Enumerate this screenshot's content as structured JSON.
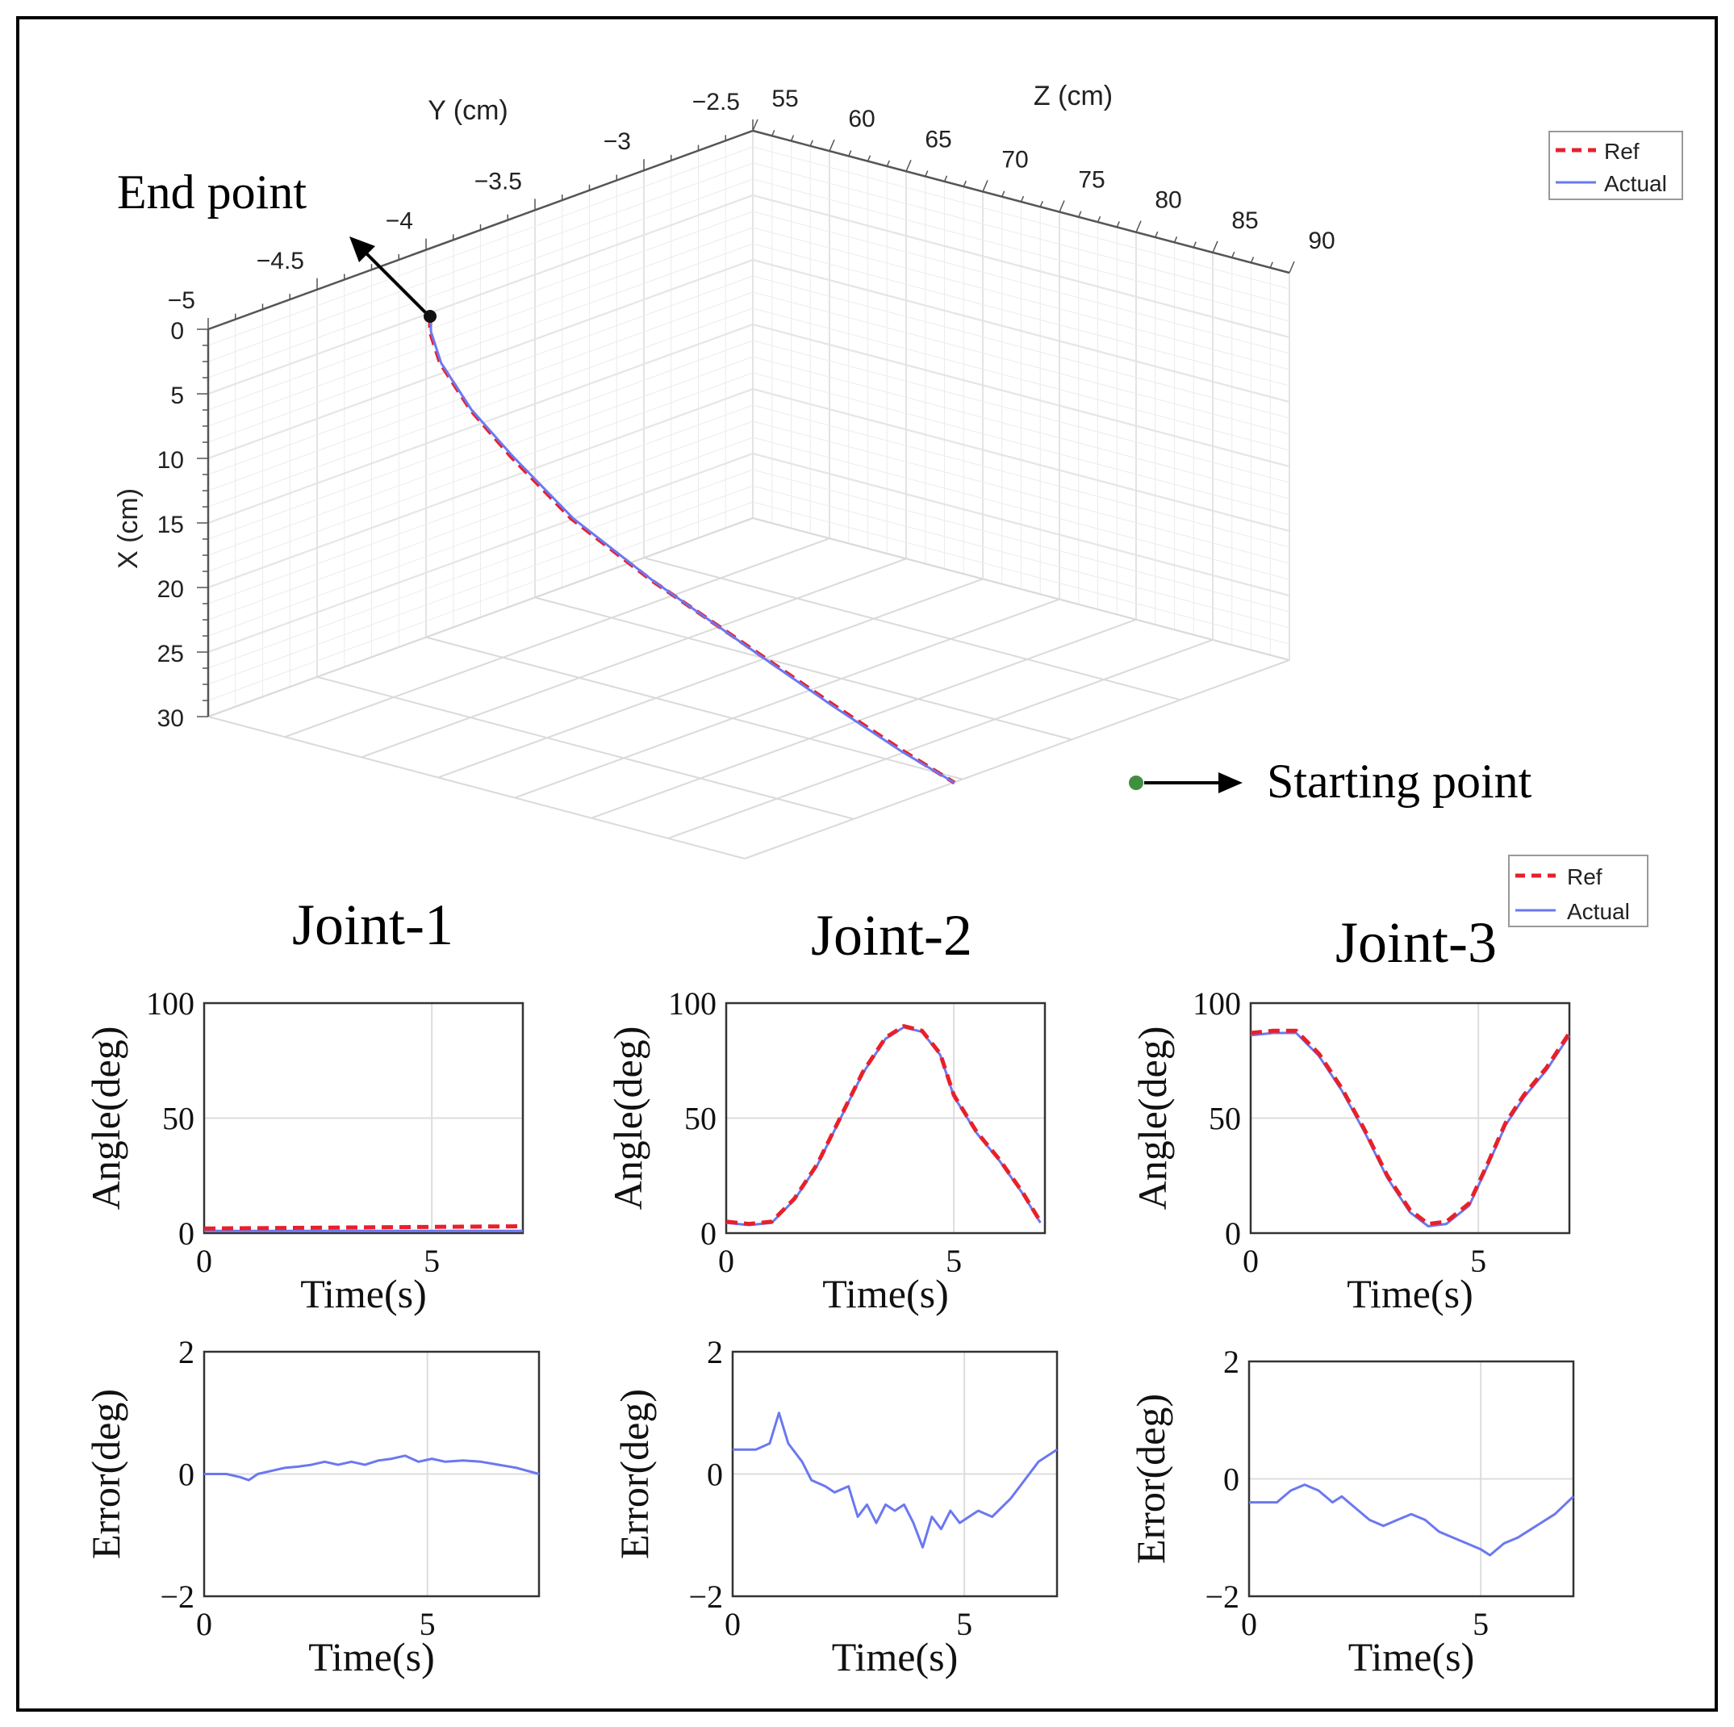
{
  "colors": {
    "ref": "#e8202a",
    "actual": "#6b78f0",
    "grid": "#d8d8d8",
    "axis": "#3a3a3a",
    "frame": "#000000"
  },
  "chart_data": [
    {
      "id": "traj3d",
      "type": "line",
      "title": "",
      "xlabel": "X (cm)",
      "ylabel": "Y (cm)",
      "zlabel": "Z (cm)",
      "x_ticks": [
        "0",
        "5",
        "10",
        "15",
        "20",
        "25",
        "30"
      ],
      "y_ticks": [
        "−5",
        "−4.5",
        "−4",
        "−3.5",
        "−3",
        "−2.5"
      ],
      "z_ticks": [
        "55",
        "60",
        "65",
        "70",
        "75",
        "80",
        "85",
        "90"
      ],
      "legend": [
        "Ref",
        "Actual"
      ],
      "annotations": {
        "end": "End point",
        "start": "Starting point"
      },
      "series": [
        {
          "name": "Ref",
          "style": "dashed",
          "x": [
            0,
            1,
            3,
            6,
            9,
            13,
            17,
            21,
            25,
            28,
            30
          ],
          "y": [
            -4,
            -4,
            -4,
            -4,
            -4,
            -4,
            -4,
            -4,
            -4,
            -4,
            -4
          ],
          "z": [
            55.0,
            55.0,
            55.5,
            57,
            59,
            62,
            66,
            70.5,
            75,
            78.5,
            81
          ]
        },
        {
          "name": "Actual",
          "style": "solid",
          "x": [
            0,
            1,
            3,
            6,
            9,
            13,
            17,
            21,
            25,
            28,
            30
          ],
          "y": [
            -4,
            -4,
            -4,
            -4,
            -4,
            -4,
            -4,
            -4,
            -4,
            -4,
            -4
          ],
          "z": [
            55.0,
            55.05,
            55.55,
            57.05,
            59.1,
            62.1,
            66.05,
            70.45,
            74.9,
            78.4,
            81
          ]
        }
      ]
    },
    {
      "id": "j1_angle",
      "type": "line",
      "title": "Joint-1",
      "xlabel": "Time(s)",
      "ylabel": "Angle(deg)",
      "xlim": [
        0,
        7
      ],
      "ylim": [
        0,
        100
      ],
      "xticks": [
        "0",
        "5"
      ],
      "yticks": [
        "0",
        "50",
        "100"
      ],
      "series": [
        {
          "name": "Ref",
          "x": [
            0,
            7
          ],
          "y": [
            2,
            3
          ]
        },
        {
          "name": "Actual",
          "x": [
            0,
            7
          ],
          "y": [
            1,
            1
          ]
        }
      ]
    },
    {
      "id": "j2_angle",
      "type": "line",
      "title": "Joint-2",
      "xlabel": "Time(s)",
      "ylabel": "Angle(deg)",
      "xlim": [
        0,
        7
      ],
      "ylim": [
        0,
        100
      ],
      "xticks": [
        "0",
        "5"
      ],
      "yticks": [
        "0",
        "50",
        "100"
      ],
      "series": [
        {
          "name": "Ref",
          "x": [
            0,
            0.5,
            1,
            1.5,
            2,
            2.5,
            3,
            3.5,
            3.9,
            4.3,
            4.7,
            5,
            5.5,
            6,
            6.5,
            6.9
          ],
          "y": [
            5,
            4,
            5,
            15,
            30,
            50,
            70,
            85,
            90,
            88,
            78,
            60,
            44,
            32,
            18,
            5
          ]
        },
        {
          "name": "Actual",
          "x": [
            0,
            0.5,
            1,
            1.5,
            2,
            2.5,
            3,
            3.5,
            3.9,
            4.3,
            4.7,
            5,
            5.5,
            6,
            6.5,
            6.9
          ],
          "y": [
            4.5,
            3.5,
            4.5,
            14.5,
            29.5,
            49.5,
            69.5,
            84.5,
            89.5,
            87.5,
            77.5,
            59.5,
            43.5,
            31.5,
            17.5,
            4.5
          ]
        }
      ]
    },
    {
      "id": "j3_angle",
      "type": "line",
      "title": "Joint-3",
      "xlabel": "Time(s)",
      "ylabel": "Angle(deg)",
      "xlim": [
        0,
        7
      ],
      "ylim": [
        0,
        100
      ],
      "xticks": [
        "0",
        "5"
      ],
      "yticks": [
        "0",
        "50",
        "100"
      ],
      "series": [
        {
          "name": "Ref",
          "x": [
            0,
            0.5,
            1,
            1.5,
            2,
            2.5,
            3,
            3.5,
            3.9,
            4.3,
            4.8,
            5.2,
            5.6,
            6,
            6.5,
            7
          ],
          "y": [
            87,
            88,
            88,
            78,
            63,
            45,
            25,
            10,
            4,
            5,
            13,
            30,
            48,
            60,
            72,
            87
          ]
        },
        {
          "name": "Actual",
          "x": [
            0,
            0.5,
            1,
            1.5,
            2,
            2.5,
            3,
            3.5,
            3.9,
            4.3,
            4.8,
            5.2,
            5.6,
            6,
            6.5,
            7
          ],
          "y": [
            86,
            87,
            87,
            77,
            62,
            44,
            24,
            9,
            3,
            4,
            12,
            29,
            47,
            59,
            71,
            86
          ]
        }
      ]
    },
    {
      "id": "j1_error",
      "type": "line",
      "title": "",
      "xlabel": "Time(s)",
      "ylabel": "Error(deg)",
      "xlim": [
        0,
        7.5
      ],
      "ylim": [
        -2,
        2
      ],
      "xticks": [
        "0",
        "5"
      ],
      "yticks": [
        "−2",
        "0",
        "2"
      ],
      "series": [
        {
          "name": "Actual",
          "x": [
            0,
            0.5,
            0.8,
            1.0,
            1.2,
            1.5,
            1.8,
            2.1,
            2.4,
            2.7,
            3.0,
            3.3,
            3.6,
            3.9,
            4.2,
            4.5,
            4.8,
            5.1,
            5.4,
            5.8,
            6.2,
            6.6,
            7.0,
            7.5
          ],
          "y": [
            0,
            0,
            -0.05,
            -0.1,
            0,
            0.05,
            0.1,
            0.12,
            0.15,
            0.2,
            0.15,
            0.2,
            0.15,
            0.22,
            0.25,
            0.3,
            0.2,
            0.25,
            0.2,
            0.22,
            0.2,
            0.15,
            0.1,
            0
          ]
        }
      ]
    },
    {
      "id": "j2_error",
      "type": "line",
      "title": "",
      "xlabel": "Time(s)",
      "ylabel": "Error(deg)",
      "xlim": [
        0,
        7
      ],
      "ylim": [
        -2,
        2
      ],
      "xticks": [
        "0",
        "5"
      ],
      "yticks": [
        "−2",
        "0",
        "2"
      ],
      "series": [
        {
          "name": "Actual",
          "x": [
            0,
            0.5,
            0.8,
            1.0,
            1.2,
            1.5,
            1.7,
            2.0,
            2.2,
            2.5,
            2.7,
            2.9,
            3.1,
            3.3,
            3.5,
            3.7,
            3.9,
            4.1,
            4.3,
            4.5,
            4.7,
            4.9,
            5.1,
            5.3,
            5.6,
            6.0,
            6.3,
            6.6,
            7.0
          ],
          "y": [
            0.4,
            0.4,
            0.5,
            1.0,
            0.5,
            0.2,
            -0.1,
            -0.2,
            -0.3,
            -0.2,
            -0.7,
            -0.5,
            -0.8,
            -0.5,
            -0.6,
            -0.5,
            -0.8,
            -1.2,
            -0.7,
            -0.9,
            -0.6,
            -0.8,
            -0.7,
            -0.6,
            -0.7,
            -0.4,
            -0.1,
            0.2,
            0.4
          ]
        }
      ]
    },
    {
      "id": "j3_error",
      "type": "line",
      "title": "",
      "xlabel": "Time(s)",
      "ylabel": "Error(deg)",
      "xlim": [
        0,
        7
      ],
      "ylim": [
        -2,
        2
      ],
      "xticks": [
        "0",
        "5"
      ],
      "yticks": [
        "−2",
        "0",
        "2"
      ],
      "series": [
        {
          "name": "Actual",
          "x": [
            0,
            0.3,
            0.6,
            0.9,
            1.2,
            1.5,
            1.8,
            2.0,
            2.3,
            2.6,
            2.9,
            3.2,
            3.5,
            3.8,
            4.1,
            4.4,
            4.7,
            5.0,
            5.2,
            5.5,
            5.8,
            6.2,
            6.6,
            7.0
          ],
          "y": [
            -0.4,
            -0.4,
            -0.4,
            -0.2,
            -0.1,
            -0.2,
            -0.4,
            -0.3,
            -0.5,
            -0.7,
            -0.8,
            -0.7,
            -0.6,
            -0.7,
            -0.9,
            -1.0,
            -1.1,
            -1.2,
            -1.3,
            -1.1,
            -1.0,
            -0.8,
            -0.6,
            -0.3
          ]
        }
      ]
    }
  ],
  "legends": [
    {
      "ref_label": "Ref",
      "actual_label": "Actual"
    },
    {
      "ref_label": "Ref",
      "actual_label": "Actual"
    }
  ]
}
